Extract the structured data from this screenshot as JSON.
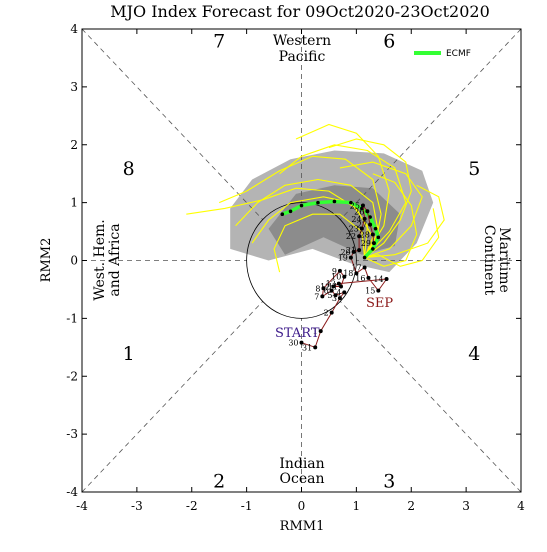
{
  "title": "MJO Index Forecast for 09Oct2020-23Oct2020",
  "axes": {
    "xlabel": "RMM1",
    "ylabel": "RMM2",
    "xticks": [
      "-4",
      "-3",
      "-2",
      "-1",
      "0",
      "1",
      "2",
      "3",
      "4"
    ],
    "yticks": [
      "4",
      "3",
      "2",
      "1",
      "0",
      "-1",
      "-2",
      "-3",
      "-4"
    ]
  },
  "phases": [
    "1",
    "2",
    "3",
    "4",
    "5",
    "6",
    "7",
    "8"
  ],
  "regions": {
    "western_pacific": [
      "Western",
      "Pacific"
    ],
    "indian_ocean": [
      "Indian",
      "Ocean"
    ],
    "west_hem": [
      "West. Hem.",
      "and Africa"
    ],
    "maritime": [
      "Maritime",
      "Continent"
    ]
  },
  "labels": {
    "start": "START",
    "sep": "SEP"
  },
  "legend": {
    "label": "ECMF",
    "color": "#33ff33"
  },
  "colors": {
    "ensemble": "#ffff00",
    "observed": "#8b1a1a",
    "start_text": "#3c1a8a",
    "shade_outer": "#b4b4b4",
    "shade_inner": "#8c8c8c"
  },
  "chart_data": {
    "type": "scatter",
    "title": "MJO Index Forecast for 09Oct2020-23Oct2020",
    "xlabel": "RMM1",
    "ylabel": "RMM2",
    "xlim": [
      -4,
      4
    ],
    "ylim": [
      -4,
      4
    ],
    "grid": false,
    "legend_position": "top-right",
    "observed_series": {
      "name": "observed",
      "points": [
        {
          "label": "30",
          "x": 0.0,
          "y": -1.42
        },
        {
          "label": "31",
          "x": 0.25,
          "y": -1.5
        },
        {
          "label": "1",
          "x": 0.35,
          "y": -1.22
        },
        {
          "label": "2",
          "x": 0.55,
          "y": -0.9
        },
        {
          "label": "3",
          "x": 0.7,
          "y": -0.65
        },
        {
          "label": "4",
          "x": 0.78,
          "y": -0.55
        },
        {
          "label": "5",
          "x": 0.62,
          "y": -0.6
        },
        {
          "label": "6",
          "x": 0.55,
          "y": -0.52
        },
        {
          "label": "7",
          "x": 0.38,
          "y": -0.62
        },
        {
          "label": "8",
          "x": 0.4,
          "y": -0.48
        },
        {
          "label": "9",
          "x": 0.7,
          "y": -0.18
        },
        {
          "label": "10",
          "x": 0.78,
          "y": -0.28
        },
        {
          "label": "11",
          "x": 0.72,
          "y": -0.45
        },
        {
          "label": "12",
          "x": 0.58,
          "y": -0.45
        },
        {
          "label": "13",
          "x": 0.68,
          "y": -0.4
        },
        {
          "label": "14",
          "x": 1.55,
          "y": -0.32
        },
        {
          "label": "15",
          "x": 1.4,
          "y": -0.52
        },
        {
          "label": "16",
          "x": 1.22,
          "y": -0.3
        },
        {
          "label": "17",
          "x": 1.15,
          "y": -0.12
        },
        {
          "label": "18",
          "x": 1.0,
          "y": -0.22
        },
        {
          "label": "19",
          "x": 0.9,
          "y": 0.05
        },
        {
          "label": "20",
          "x": 0.95,
          "y": 0.15
        },
        {
          "label": "21",
          "x": 1.05,
          "y": 0.18
        },
        {
          "label": "22",
          "x": 1.05,
          "y": 0.42
        },
        {
          "label": "23",
          "x": 1.1,
          "y": 0.55
        },
        {
          "label": "24",
          "x": 1.15,
          "y": 0.72
        },
        {
          "label": "25",
          "x": 1.12,
          "y": 0.95
        },
        {
          "label": "26",
          "x": 1.2,
          "y": 0.85
        },
        {
          "label": "27",
          "x": 1.25,
          "y": 0.62
        },
        {
          "label": "28",
          "x": 1.3,
          "y": 0.45
        },
        {
          "label": "29",
          "x": 1.32,
          "y": 0.3
        }
      ]
    },
    "ensemble_mean": {
      "name": "ECMF",
      "points": [
        [
          1.15,
          0.05
        ],
        [
          1.3,
          0.2
        ],
        [
          1.4,
          0.4
        ],
        [
          1.35,
          0.55
        ],
        [
          1.25,
          0.75
        ],
        [
          1.1,
          0.9
        ],
        [
          0.9,
          1.0
        ],
        [
          0.6,
          1.02
        ],
        [
          0.3,
          1.0
        ],
        [
          0.0,
          0.95
        ],
        [
          -0.2,
          0.85
        ],
        [
          -0.35,
          0.8
        ]
      ]
    },
    "ensemble_members": [
      [
        [
          1.15,
          0.05
        ],
        [
          1.5,
          0.3
        ],
        [
          1.8,
          0.7
        ],
        [
          2.0,
          1.2
        ],
        [
          1.9,
          1.7
        ],
        [
          1.5,
          2.0
        ],
        [
          1.0,
          2.1
        ],
        [
          0.5,
          1.95
        ]
      ],
      [
        [
          1.15,
          0.05
        ],
        [
          1.4,
          0.5
        ],
        [
          1.3,
          1.0
        ],
        [
          0.9,
          1.3
        ],
        [
          0.3,
          1.4
        ],
        [
          -0.3,
          1.3
        ],
        [
          -0.8,
          1.0
        ],
        [
          -1.2,
          0.6
        ]
      ],
      [
        [
          1.15,
          0.05
        ],
        [
          1.6,
          0.2
        ],
        [
          2.0,
          0.6
        ],
        [
          2.2,
          1.1
        ],
        [
          1.9,
          1.5
        ],
        [
          1.3,
          1.7
        ],
        [
          0.7,
          1.6
        ]
      ],
      [
        [
          1.15,
          0.05
        ],
        [
          1.3,
          0.4
        ],
        [
          1.0,
          0.9
        ],
        [
          0.5,
          1.2
        ],
        [
          -0.1,
          1.25
        ],
        [
          -0.7,
          1.05
        ],
        [
          -1.4,
          0.9
        ],
        [
          -2.1,
          0.8
        ]
      ],
      [
        [
          1.15,
          0.05
        ],
        [
          1.7,
          0.1
        ],
        [
          2.3,
          0.3
        ],
        [
          2.6,
          0.7
        ],
        [
          2.5,
          1.1
        ],
        [
          2.1,
          1.3
        ]
      ],
      [
        [
          1.15,
          0.05
        ],
        [
          1.2,
          0.6
        ],
        [
          0.9,
          1.0
        ],
        [
          0.4,
          1.1
        ],
        [
          -0.2,
          1.0
        ],
        [
          -0.6,
          0.7
        ],
        [
          -0.9,
          0.3
        ]
      ],
      [
        [
          1.15,
          0.05
        ],
        [
          1.5,
          0.6
        ],
        [
          1.6,
          1.2
        ],
        [
          1.4,
          1.8
        ],
        [
          1.0,
          2.2
        ],
        [
          0.5,
          2.35
        ],
        [
          -0.1,
          2.1
        ]
      ],
      [
        [
          1.15,
          0.05
        ],
        [
          1.4,
          0.1
        ],
        [
          1.8,
          -0.1
        ],
        [
          2.2,
          0.0
        ],
        [
          2.5,
          0.4
        ],
        [
          2.4,
          0.9
        ]
      ],
      [
        [
          1.15,
          0.05
        ],
        [
          1.1,
          0.5
        ],
        [
          0.7,
          0.8
        ],
        [
          0.2,
          0.8
        ],
        [
          -0.3,
          0.6
        ],
        [
          -0.5,
          0.2
        ],
        [
          -0.4,
          -0.2
        ]
      ],
      [
        [
          1.15,
          0.05
        ],
        [
          1.6,
          0.5
        ],
        [
          1.9,
          1.0
        ],
        [
          1.7,
          1.6
        ],
        [
          1.2,
          1.9
        ],
        [
          0.6,
          2.0
        ],
        [
          0.0,
          1.8
        ],
        [
          -0.4,
          1.5
        ]
      ],
      [
        [
          1.15,
          0.05
        ],
        [
          1.35,
          0.3
        ],
        [
          1.45,
          0.8
        ],
        [
          1.3,
          1.4
        ],
        [
          0.8,
          1.75
        ],
        [
          0.2,
          1.8
        ],
        [
          -0.4,
          1.55
        ],
        [
          -1.0,
          1.2
        ],
        [
          -1.5,
          1.0
        ]
      ],
      [
        [
          1.15,
          0.05
        ],
        [
          1.5,
          -0.1
        ],
        [
          1.9,
          0.0
        ],
        [
          2.1,
          0.45
        ],
        [
          2.0,
          0.95
        ],
        [
          1.7,
          1.35
        ],
        [
          1.3,
          1.5
        ]
      ]
    ]
  }
}
